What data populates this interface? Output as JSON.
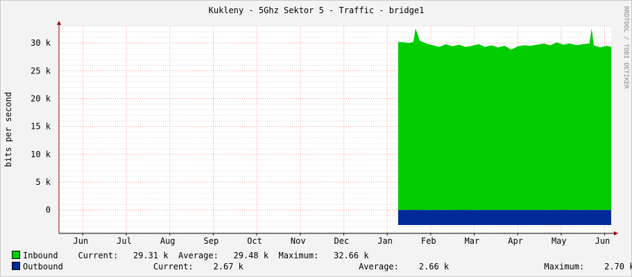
{
  "chart_data": {
    "type": "area",
    "title": "Kukleny - 5Ghz Sektor 5 - Traffic - bridge1",
    "ylabel": "bits per second",
    "xlabel": "",
    "ylim": [
      -4200,
      33000
    ],
    "yticks": [
      {
        "v": 0,
        "label": "0"
      },
      {
        "v": 5000,
        "label": "5 k"
      },
      {
        "v": 10000,
        "label": "10 k"
      },
      {
        "v": 15000,
        "label": "15 k"
      },
      {
        "v": 20000,
        "label": "20 k"
      },
      {
        "v": 25000,
        "label": "25 k"
      },
      {
        "v": 30000,
        "label": "30 k"
      }
    ],
    "xlim": [
      0,
      12.7
    ],
    "xticks": [
      {
        "x": 0.5,
        "label": "Jun"
      },
      {
        "x": 1.5,
        "label": "Jul"
      },
      {
        "x": 2.5,
        "label": "Aug"
      },
      {
        "x": 3.5,
        "label": "Sep"
      },
      {
        "x": 4.5,
        "label": "Oct"
      },
      {
        "x": 5.5,
        "label": "Nov"
      },
      {
        "x": 6.5,
        "label": "Dec"
      },
      {
        "x": 7.5,
        "label": "Jan"
      },
      {
        "x": 8.5,
        "label": "Feb"
      },
      {
        "x": 9.5,
        "label": "Mar"
      },
      {
        "x": 10.5,
        "label": "Apr"
      },
      {
        "x": 11.5,
        "label": "May"
      },
      {
        "x": 12.5,
        "label": "Jun"
      }
    ],
    "month_boundaries": [
      0.55,
      1.55,
      2.55,
      3.55,
      4.55,
      5.55,
      6.55,
      7.55,
      8.55,
      9.55,
      10.55,
      11.55,
      12.55
    ],
    "grid": true,
    "series": [
      {
        "name": "Inbound",
        "color": "#00cc00",
        "x": [
          7.8,
          7.95,
          8.05,
          8.15,
          8.2,
          8.3,
          8.45,
          8.6,
          8.75,
          8.9,
          9.05,
          9.2,
          9.35,
          9.5,
          9.65,
          9.8,
          9.95,
          10.1,
          10.25,
          10.4,
          10.55,
          10.7,
          10.85,
          11.0,
          11.15,
          11.3,
          11.45,
          11.6,
          11.75,
          11.9,
          12.05,
          12.2,
          12.25,
          12.3,
          12.45,
          12.6,
          12.7
        ],
        "values": [
          30200,
          30100,
          30000,
          30200,
          32600,
          30400,
          29900,
          29600,
          29300,
          29800,
          29400,
          29700,
          29300,
          29500,
          29800,
          29300,
          29600,
          29200,
          29500,
          28800,
          29400,
          29600,
          29500,
          29700,
          29900,
          29600,
          30100,
          29700,
          29900,
          29600,
          29800,
          29900,
          32600,
          29600,
          29200,
          29500,
          29300
        ]
      },
      {
        "name": "Outbound",
        "color": "#002a97",
        "x": [
          7.8,
          12.7
        ],
        "values": [
          2700,
          2700
        ]
      }
    ]
  },
  "legend": {
    "inbound": {
      "name": "Inbound",
      "current_label": "Current:",
      "current": "29.31 k",
      "average_label": "Average:",
      "average": "29.48 k",
      "maximum_label": "Maximum:",
      "maximum": "32.66 k"
    },
    "outbound": {
      "name": "Outbound",
      "current_label": "Current:",
      "current": "2.67 k",
      "average_label": "Average:",
      "average": "2.66 k",
      "maximum_label": "Maximum:",
      "maximum": "2.70 k"
    }
  },
  "watermark": "RRDTOOL / TOBI OETIKER",
  "colors": {
    "inbound": "#00cc00",
    "outbound": "#002a97",
    "canvas": "#ffffff",
    "back": "#f3f3f3",
    "grid_major": "#ff5050",
    "grid_minor": "#d8d8d8",
    "axis": "#a00000"
  }
}
